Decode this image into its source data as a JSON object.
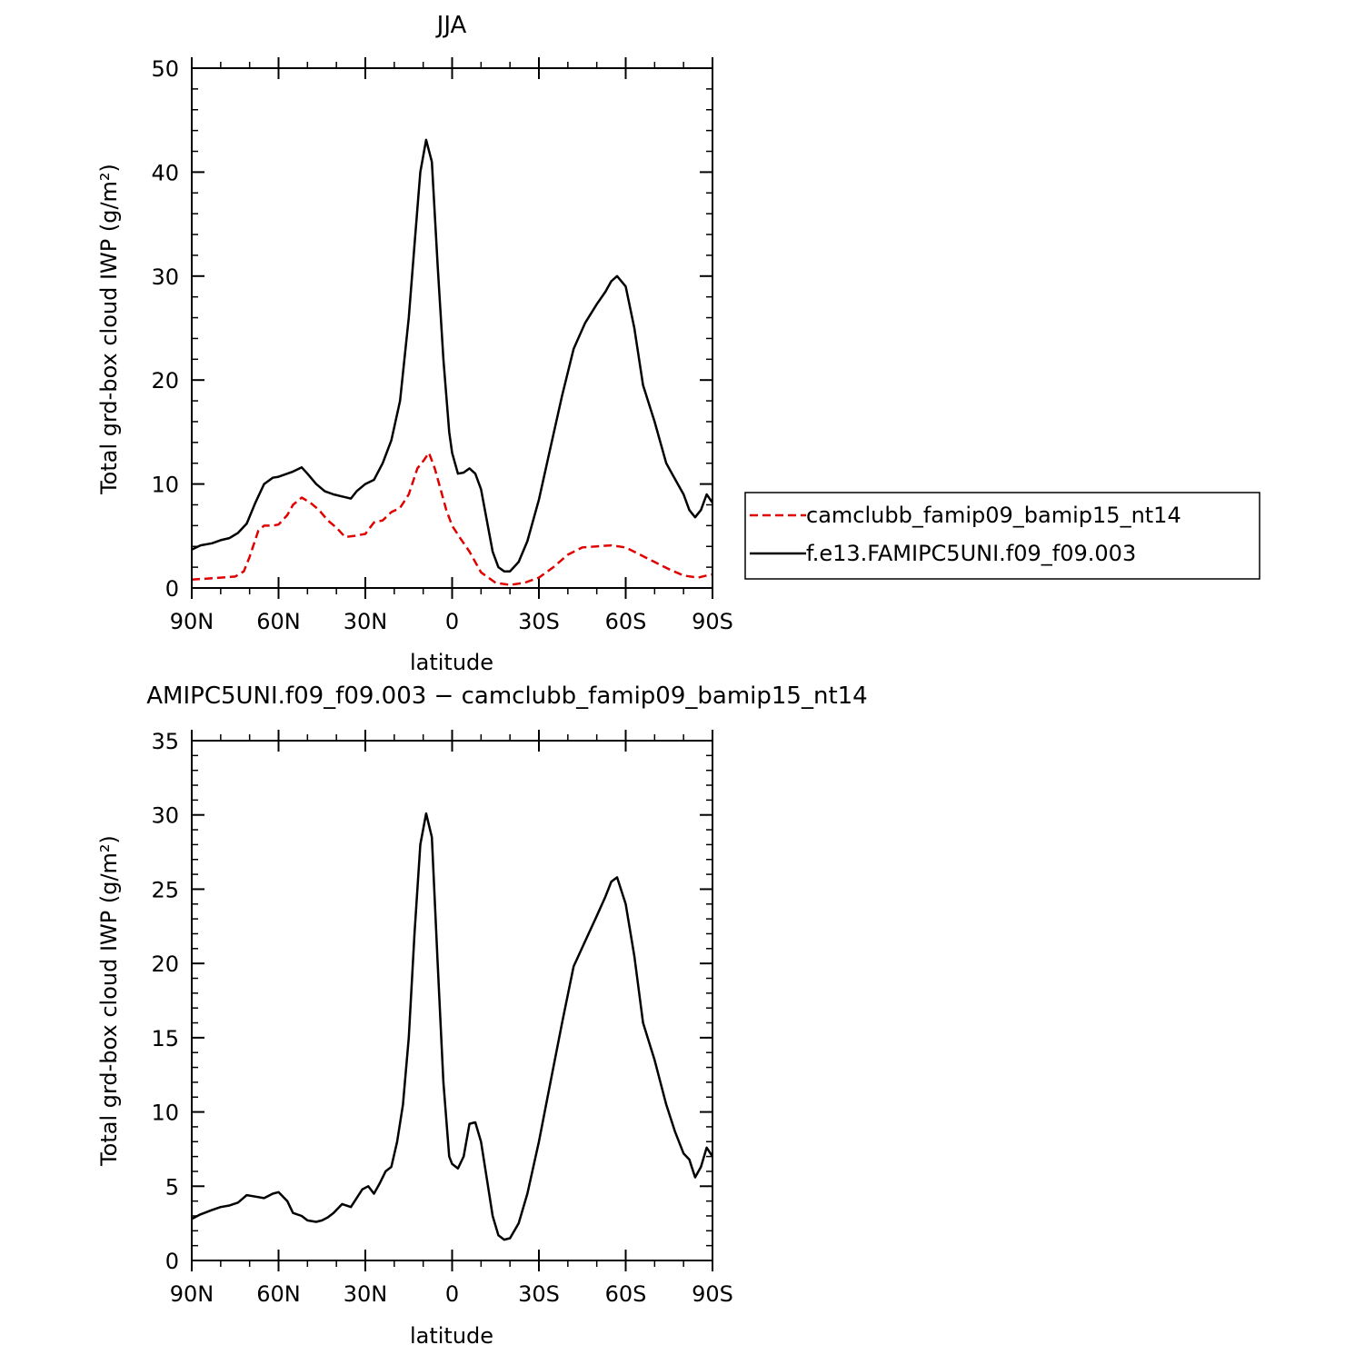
{
  "chart_data": [
    {
      "type": "line",
      "title": "JJA",
      "xlabel": "latitude",
      "ylabel": "Total grd-box cloud IWP (g/m²)",
      "x_ticks": [
        {
          "value": 90,
          "label": "90N"
        },
        {
          "value": 60,
          "label": "60N"
        },
        {
          "value": 30,
          "label": "30N"
        },
        {
          "value": 0,
          "label": "0"
        },
        {
          "value": -30,
          "label": "30S"
        },
        {
          "value": -60,
          "label": "60S"
        },
        {
          "value": -90,
          "label": "90S"
        }
      ],
      "xlim": [
        90,
        -90
      ],
      "ylim": [
        0,
        50
      ],
      "y_ticks": [
        0,
        10,
        20,
        30,
        40,
        50
      ],
      "legend": {
        "placement": "outside-right"
      },
      "series": [
        {
          "name": "camclubb_famip09_bamip15_nt14",
          "color": "#e00000",
          "style": "dashed",
          "x": [
            90,
            85,
            80,
            75,
            72,
            70,
            67,
            65,
            62,
            60,
            57,
            55,
            52,
            49,
            46,
            43,
            40,
            37,
            34,
            30,
            27,
            24,
            21,
            18,
            15,
            12,
            10,
            8,
            6,
            4,
            2,
            0,
            -3,
            -6,
            -10,
            -15,
            -20,
            -25,
            -30,
            -35,
            -40,
            -45,
            -50,
            -55,
            -60,
            -65,
            -70,
            -75,
            -80,
            -85,
            -88,
            -90
          ],
          "values": [
            0.8,
            0.9,
            1.0,
            1.1,
            1.6,
            3.0,
            5.5,
            6.0,
            6.0,
            6.1,
            7.0,
            8.0,
            8.7,
            8.2,
            7.5,
            6.5,
            5.8,
            4.9,
            5.0,
            5.2,
            6.3,
            6.5,
            7.3,
            7.7,
            9.0,
            11.5,
            12.2,
            13.0,
            11.5,
            9.5,
            7.5,
            6.0,
            4.7,
            3.5,
            1.5,
            0.5,
            0.3,
            0.5,
            1.0,
            2.0,
            3.2,
            3.9,
            4.0,
            4.1,
            3.9,
            3.2,
            2.5,
            1.8,
            1.2,
            1.0,
            1.2,
            1.3
          ]
        },
        {
          "name": "f.e13.FAMIPC5UNI.f09_f09.003",
          "color": "#000000",
          "style": "solid",
          "x": [
            90,
            87,
            83,
            80,
            77,
            74,
            71,
            68,
            65,
            62,
            60,
            57,
            55,
            52,
            50,
            47,
            44,
            41,
            38,
            35,
            33,
            30,
            27,
            24,
            21,
            18,
            15,
            13,
            11,
            9,
            7,
            5,
            3,
            1,
            0,
            -2,
            -4,
            -6,
            -8,
            -10,
            -12,
            -14,
            -16,
            -18,
            -20,
            -23,
            -26,
            -30,
            -34,
            -38,
            -42,
            -46,
            -50,
            -53,
            -55,
            -57,
            -60,
            -63,
            -66,
            -70,
            -74,
            -77,
            -80,
            -82,
            -84,
            -86,
            -88,
            -90
          ],
          "values": [
            3.7,
            4.1,
            4.3,
            4.6,
            4.8,
            5.3,
            6.2,
            8.2,
            10.0,
            10.6,
            10.7,
            11.0,
            11.2,
            11.6,
            11.0,
            10.0,
            9.3,
            9.0,
            8.8,
            8.6,
            9.3,
            10.0,
            10.4,
            12.0,
            14.2,
            18.0,
            26.0,
            33.0,
            40.0,
            43.1,
            41.0,
            31.0,
            22.0,
            15.0,
            13.0,
            11.0,
            11.1,
            11.5,
            11.0,
            9.5,
            6.5,
            3.5,
            2.0,
            1.6,
            1.6,
            2.5,
            4.5,
            8.5,
            13.5,
            18.5,
            23.0,
            25.5,
            27.3,
            28.5,
            29.5,
            30.0,
            29.0,
            25.0,
            19.5,
            16.0,
            12.0,
            10.5,
            9.0,
            7.5,
            6.8,
            7.5,
            9.0,
            8.2
          ]
        }
      ]
    },
    {
      "type": "line",
      "title": "AMIPC5UNI.f09_f09.003 − camclubb_famip09_bamip15_nt14",
      "xlabel": "latitude",
      "ylabel": "Total grd-box cloud IWP (g/m²)",
      "x_ticks": [
        {
          "value": 90,
          "label": "90N"
        },
        {
          "value": 60,
          "label": "60N"
        },
        {
          "value": 30,
          "label": "30N"
        },
        {
          "value": 0,
          "label": "0"
        },
        {
          "value": -30,
          "label": "30S"
        },
        {
          "value": -60,
          "label": "60S"
        },
        {
          "value": -90,
          "label": "90S"
        }
      ],
      "xlim": [
        90,
        -90
      ],
      "ylim": [
        0,
        35
      ],
      "y_ticks": [
        0,
        5,
        10,
        15,
        20,
        25,
        30,
        35
      ],
      "series": [
        {
          "color": "#000000",
          "style": "solid",
          "x": [
            90,
            87,
            83,
            80,
            77,
            74,
            71,
            68,
            65,
            62,
            60,
            57,
            55,
            52,
            50,
            47,
            45,
            43,
            41,
            38,
            35,
            33,
            31,
            29,
            27,
            25,
            23,
            21,
            19,
            17,
            15,
            13,
            11,
            9,
            7,
            5,
            3,
            1,
            0,
            -2,
            -4,
            -6,
            -8,
            -10,
            -12,
            -14,
            -16,
            -18,
            -20,
            -23,
            -26,
            -30,
            -34,
            -38,
            -42,
            -46,
            -50,
            -53,
            -55,
            -57,
            -60,
            -63,
            -66,
            -70,
            -74,
            -77,
            -80,
            -82,
            -84,
            -86,
            -88,
            -90
          ],
          "values": [
            2.8,
            3.1,
            3.4,
            3.6,
            3.7,
            3.9,
            4.4,
            4.3,
            4.2,
            4.5,
            4.6,
            4.0,
            3.2,
            3.0,
            2.7,
            2.6,
            2.7,
            2.9,
            3.2,
            3.8,
            3.6,
            4.2,
            4.8,
            5.0,
            4.5,
            5.2,
            6.0,
            6.3,
            8.0,
            10.5,
            15.0,
            22.0,
            28.0,
            30.1,
            28.5,
            20.0,
            12.0,
            7.0,
            6.5,
            6.2,
            7.0,
            9.2,
            9.3,
            8.0,
            5.5,
            3.0,
            1.7,
            1.4,
            1.5,
            2.5,
            4.5,
            8.0,
            12.0,
            16.0,
            19.8,
            21.5,
            23.2,
            24.5,
            25.5,
            25.8,
            24.0,
            20.5,
            16.0,
            13.5,
            10.5,
            8.7,
            7.2,
            6.8,
            5.6,
            6.3,
            7.6,
            7.0
          ]
        }
      ]
    }
  ]
}
